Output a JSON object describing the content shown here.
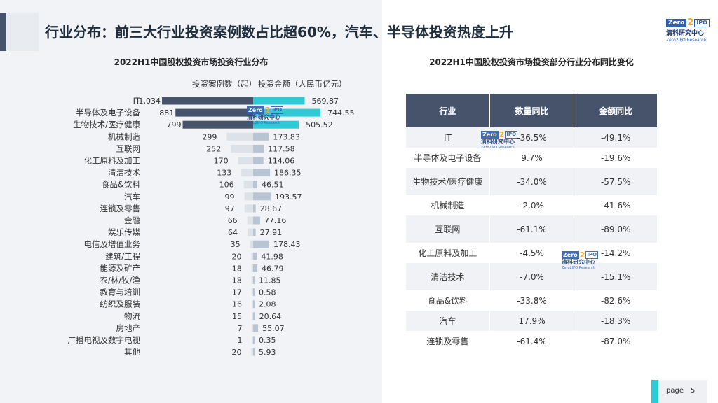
{
  "header": {
    "title": "行业分布：前三大行业投资案例数占比超60%，汽车、半导体投资热度上升"
  },
  "logo": {
    "zero": "Zero",
    "two": "2",
    "ipo": "IPO",
    "cn": "清科研究中心",
    "en": "Zero2IPO Research"
  },
  "left_chart": {
    "title": "2022H1中国股权投资市场投资行业分布",
    "legend_count": "投资案例数（起）",
    "legend_amount": "投资金额（人民币亿元）"
  },
  "right_table": {
    "title": "2022H1中国股权投资市场投资部分行业分布同比变化",
    "headers": [
      "行业",
      "数量同比",
      "金额同比"
    ],
    "rows": [
      [
        "IT",
        "-36.5%",
        "-49.1%"
      ],
      [
        "半导体及电子设备",
        "9.7%",
        "-19.6%"
      ],
      [
        "生物技术/医疗健康",
        "-34.0%",
        "-57.5%"
      ],
      [
        "机械制造",
        "-2.0%",
        "-41.6%"
      ],
      [
        "互联网",
        "-61.1%",
        "-89.0%"
      ],
      [
        "化工原料及加工",
        "-4.5%",
        "-14.2%"
      ],
      [
        "清洁技术",
        "-7.0%",
        "-15.1%"
      ],
      [
        "食品&饮料",
        "-33.8%",
        "-82.6%"
      ],
      [
        "汽车",
        "17.9%",
        "-18.3%"
      ],
      [
        "连锁及零售",
        "-61.4%",
        "-87.0%"
      ]
    ]
  },
  "footer": {
    "page_label": "page",
    "page_number": "5"
  },
  "colors": {
    "count_top3": "#46536b",
    "count_rest": "#dde2e9",
    "amount_top3": "#2ecbd6",
    "amount_rest": "#b9c4d2",
    "header_bg": "#46536b"
  },
  "chart_data": {
    "type": "bar",
    "orientation": "horizontal-butterfly",
    "title": "2022H1中国股权投资市场投资行业分布",
    "categories": [
      "IT",
      "半导体及电子设备",
      "生物技术/医疗健康",
      "机械制造",
      "互联网",
      "化工原料及加工",
      "清洁技术",
      "食品&饮料",
      "汽车",
      "连锁及零售",
      "金融",
      "娱乐传媒",
      "电信及增值业务",
      "建筑/工程",
      "能源及矿产",
      "农/林/牧/渔",
      "教育与培训",
      "纺织及服装",
      "物流",
      "房地产",
      "广播电视及数字电视",
      "其他"
    ],
    "series": [
      {
        "name": "投资案例数（起）",
        "values": [
          1034,
          881,
          799,
          299,
          252,
          170,
          133,
          106,
          99,
          97,
          66,
          64,
          35,
          20,
          18,
          18,
          17,
          16,
          15,
          7,
          1,
          20
        ]
      },
      {
        "name": "投资金额（人民币亿元）",
        "values": [
          569.87,
          744.55,
          505.52,
          173.83,
          117.58,
          114.06,
          186.35,
          46.51,
          193.57,
          28.67,
          77.16,
          27.91,
          178.43,
          41.98,
          46.79,
          11.85,
          0.58,
          2.08,
          20.64,
          55.07,
          0.35,
          5.93
        ]
      }
    ],
    "value_labels_count": [
      "1,034",
      "881",
      "799",
      "299",
      "252",
      "170",
      "133",
      "106",
      "99",
      "97",
      "66",
      "64",
      "35",
      "20",
      "18",
      "18",
      "17",
      "16",
      "15",
      "7",
      "1",
      "20"
    ],
    "value_labels_amount": [
      "569.87",
      "744.55",
      "505.52",
      "173.83",
      "117.58",
      "114.06",
      "186.35",
      "46.51",
      "193.57",
      "28.67",
      "77.16",
      "27.91",
      "178.43",
      "41.98",
      "46.79",
      "11.85",
      "0.58",
      "2.08",
      "20.64",
      "55.07",
      "0.35",
      "5.93"
    ],
    "highlight_top_n": 3,
    "grid": false,
    "legend": "top"
  }
}
